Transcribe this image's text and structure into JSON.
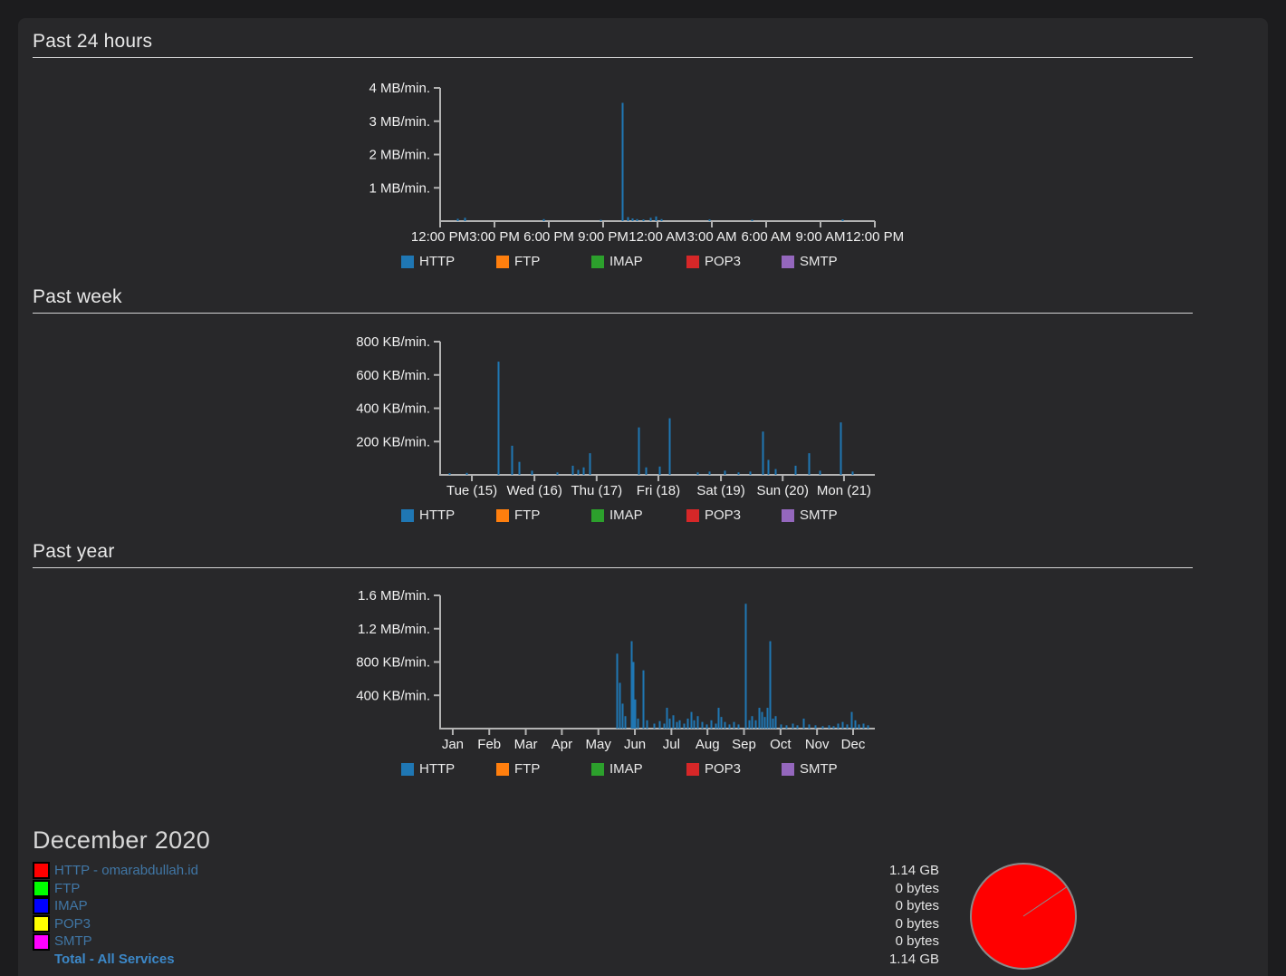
{
  "sections": [
    {
      "title": "Past 24 hours"
    },
    {
      "title": "Past week"
    },
    {
      "title": "Past year"
    }
  ],
  "services": [
    {
      "label": "HTTP",
      "color": "#1f77b4"
    },
    {
      "label": "FTP",
      "color": "#ff7f0e"
    },
    {
      "label": "IMAP",
      "color": "#2ca02c"
    },
    {
      "label": "POP3",
      "color": "#d62728"
    },
    {
      "label": "SMTP",
      "color": "#9467bd"
    }
  ],
  "chart_data": [
    {
      "type": "bar",
      "title": "Past 24 hours",
      "y_unit": "MB/min.",
      "ylim": [
        0,
        4
      ],
      "xlabel": "",
      "ylabel": "",
      "grid": false,
      "legend_position": "bottom",
      "y_ticks": [
        {
          "v": 4,
          "label": "4 MB/min."
        },
        {
          "v": 3,
          "label": "3 MB/min."
        },
        {
          "v": 2,
          "label": "2 MB/min."
        },
        {
          "v": 1,
          "label": "1 MB/min."
        }
      ],
      "x_ticks": [
        {
          "f": 0.0,
          "label": "12:00 PM"
        },
        {
          "f": 0.125,
          "label": "3:00 PM"
        },
        {
          "f": 0.25,
          "label": "6:00 PM"
        },
        {
          "f": 0.375,
          "label": "9:00 PM"
        },
        {
          "f": 0.5,
          "label": "12:00 AM"
        },
        {
          "f": 0.625,
          "label": "3:00 AM"
        },
        {
          "f": 0.75,
          "label": "6:00 AM"
        },
        {
          "f": 0.875,
          "label": "9:00 AM"
        },
        {
          "f": 1.0,
          "label": "12:00 PM"
        }
      ],
      "series": [
        {
          "name": "HTTP",
          "color": "#1f77b4",
          "bars": [
            {
              "f": 0.04,
              "v": 0.07
            },
            {
              "f": 0.056,
              "v": 0.1
            },
            {
              "f": 0.237,
              "v": 0.06
            },
            {
              "f": 0.369,
              "v": 0.04
            },
            {
              "f": 0.419,
              "v": 3.55
            },
            {
              "f": 0.431,
              "v": 0.12
            },
            {
              "f": 0.442,
              "v": 0.08
            },
            {
              "f": 0.452,
              "v": 0.06
            },
            {
              "f": 0.467,
              "v": 0.05
            },
            {
              "f": 0.483,
              "v": 0.1
            },
            {
              "f": 0.496,
              "v": 0.14
            },
            {
              "f": 0.508,
              "v": 0.06
            },
            {
              "f": 0.619,
              "v": 0.05
            },
            {
              "f": 0.717,
              "v": 0.04
            },
            {
              "f": 0.925,
              "v": 0.05
            }
          ]
        },
        {
          "name": "FTP",
          "color": "#ff7f0e",
          "bars": []
        },
        {
          "name": "IMAP",
          "color": "#2ca02c",
          "bars": []
        },
        {
          "name": "POP3",
          "color": "#d62728",
          "bars": []
        },
        {
          "name": "SMTP",
          "color": "#9467bd",
          "bars": []
        }
      ]
    },
    {
      "type": "bar",
      "title": "Past week",
      "y_unit": "KB/min.",
      "ylim": [
        0,
        800
      ],
      "xlabel": "",
      "ylabel": "",
      "grid": false,
      "legend_position": "bottom",
      "y_ticks": [
        {
          "v": 800,
          "label": "800 KB/min."
        },
        {
          "v": 600,
          "label": "600 KB/min."
        },
        {
          "v": 400,
          "label": "400 KB/min."
        },
        {
          "v": 200,
          "label": "200 KB/min."
        }
      ],
      "x_ticks": [
        {
          "f": 0.073,
          "label": "Tue (15)"
        },
        {
          "f": 0.217,
          "label": "Wed (16)"
        },
        {
          "f": 0.36,
          "label": "Thu (17)"
        },
        {
          "f": 0.502,
          "label": "Fri (18)"
        },
        {
          "f": 0.646,
          "label": "Sat (19)"
        },
        {
          "f": 0.788,
          "label": "Sun (20)"
        },
        {
          "f": 0.929,
          "label": "Mon (21)"
        }
      ],
      "series": [
        {
          "name": "HTTP",
          "color": "#1f77b4",
          "bars": [
            {
              "f": 0.02,
              "v": 10
            },
            {
              "f": 0.06,
              "v": 12
            },
            {
              "f": 0.133,
              "v": 680
            },
            {
              "f": 0.165,
              "v": 175
            },
            {
              "f": 0.181,
              "v": 78
            },
            {
              "f": 0.21,
              "v": 25
            },
            {
              "f": 0.269,
              "v": 15
            },
            {
              "f": 0.304,
              "v": 55
            },
            {
              "f": 0.317,
              "v": 30
            },
            {
              "f": 0.329,
              "v": 45
            },
            {
              "f": 0.344,
              "v": 130
            },
            {
              "f": 0.456,
              "v": 285
            },
            {
              "f": 0.473,
              "v": 45
            },
            {
              "f": 0.504,
              "v": 50
            },
            {
              "f": 0.527,
              "v": 340
            },
            {
              "f": 0.592,
              "v": 15
            },
            {
              "f": 0.619,
              "v": 20
            },
            {
              "f": 0.654,
              "v": 25
            },
            {
              "f": 0.685,
              "v": 15
            },
            {
              "f": 0.713,
              "v": 20
            },
            {
              "f": 0.742,
              "v": 260
            },
            {
              "f": 0.754,
              "v": 90
            },
            {
              "f": 0.771,
              "v": 35
            },
            {
              "f": 0.817,
              "v": 55
            },
            {
              "f": 0.848,
              "v": 130
            },
            {
              "f": 0.873,
              "v": 25
            },
            {
              "f": 0.921,
              "v": 315
            },
            {
              "f": 0.948,
              "v": 20
            }
          ]
        },
        {
          "name": "FTP",
          "color": "#ff7f0e",
          "bars": []
        },
        {
          "name": "IMAP",
          "color": "#2ca02c",
          "bars": []
        },
        {
          "name": "POP3",
          "color": "#d62728",
          "bars": []
        },
        {
          "name": "SMTP",
          "color": "#9467bd",
          "bars": []
        }
      ]
    },
    {
      "type": "bar",
      "title": "Past year",
      "y_unit": "MB/min.",
      "ylim": [
        0,
        1.6
      ],
      "xlabel": "",
      "ylabel": "",
      "grid": false,
      "legend_position": "bottom",
      "y_ticks": [
        {
          "v": 1.6,
          "label": "1.6 MB/min."
        },
        {
          "v": 1.2,
          "label": "1.2 MB/min."
        },
        {
          "v": 0.8,
          "label": "800 KB/min."
        },
        {
          "v": 0.4,
          "label": "400 KB/min."
        }
      ],
      "x_ticks": [
        {
          "f": 0.029,
          "label": "Jan"
        },
        {
          "f": 0.113,
          "label": "Feb"
        },
        {
          "f": 0.197,
          "label": "Mar"
        },
        {
          "f": 0.28,
          "label": "Apr"
        },
        {
          "f": 0.364,
          "label": "May"
        },
        {
          "f": 0.448,
          "label": "Jun"
        },
        {
          "f": 0.532,
          "label": "Jul"
        },
        {
          "f": 0.615,
          "label": "Aug"
        },
        {
          "f": 0.699,
          "label": "Sep"
        },
        {
          "f": 0.783,
          "label": "Oct"
        },
        {
          "f": 0.867,
          "label": "Nov"
        },
        {
          "f": 0.95,
          "label": "Dec"
        }
      ],
      "series": [
        {
          "name": "HTTP",
          "color": "#1f77b4",
          "bars": [
            {
              "f": 0.406,
              "v": 0.9
            },
            {
              "f": 0.412,
              "v": 0.55
            },
            {
              "f": 0.419,
              "v": 0.3
            },
            {
              "f": 0.425,
              "v": 0.15
            },
            {
              "f": 0.44,
              "v": 1.05
            },
            {
              "f": 0.444,
              "v": 0.8
            },
            {
              "f": 0.448,
              "v": 0.35
            },
            {
              "f": 0.454,
              "v": 0.12
            },
            {
              "f": 0.467,
              "v": 0.7
            },
            {
              "f": 0.475,
              "v": 0.1
            },
            {
              "f": 0.492,
              "v": 0.06
            },
            {
              "f": 0.504,
              "v": 0.09
            },
            {
              "f": 0.515,
              "v": 0.06
            },
            {
              "f": 0.521,
              "v": 0.25
            },
            {
              "f": 0.527,
              "v": 0.12
            },
            {
              "f": 0.535,
              "v": 0.16
            },
            {
              "f": 0.544,
              "v": 0.08
            },
            {
              "f": 0.55,
              "v": 0.1
            },
            {
              "f": 0.56,
              "v": 0.06
            },
            {
              "f": 0.569,
              "v": 0.12
            },
            {
              "f": 0.577,
              "v": 0.2
            },
            {
              "f": 0.583,
              "v": 0.1
            },
            {
              "f": 0.592,
              "v": 0.15
            },
            {
              "f": 0.602,
              "v": 0.08
            },
            {
              "f": 0.612,
              "v": 0.05
            },
            {
              "f": 0.623,
              "v": 0.1
            },
            {
              "f": 0.633,
              "v": 0.06
            },
            {
              "f": 0.64,
              "v": 0.25
            },
            {
              "f": 0.646,
              "v": 0.14
            },
            {
              "f": 0.654,
              "v": 0.08
            },
            {
              "f": 0.665,
              "v": 0.05
            },
            {
              "f": 0.675,
              "v": 0.08
            },
            {
              "f": 0.685,
              "v": 0.05
            },
            {
              "f": 0.702,
              "v": 1.5
            },
            {
              "f": 0.71,
              "v": 0.1
            },
            {
              "f": 0.717,
              "v": 0.15
            },
            {
              "f": 0.725,
              "v": 0.1
            },
            {
              "f": 0.733,
              "v": 0.25
            },
            {
              "f": 0.74,
              "v": 0.2
            },
            {
              "f": 0.746,
              "v": 0.14
            },
            {
              "f": 0.752,
              "v": 0.25
            },
            {
              "f": 0.758,
              "v": 1.05
            },
            {
              "f": 0.765,
              "v": 0.12
            },
            {
              "f": 0.771,
              "v": 0.15
            },
            {
              "f": 0.783,
              "v": 0.05
            },
            {
              "f": 0.796,
              "v": 0.04
            },
            {
              "f": 0.81,
              "v": 0.06
            },
            {
              "f": 0.821,
              "v": 0.04
            },
            {
              "f": 0.835,
              "v": 0.12
            },
            {
              "f": 0.848,
              "v": 0.05
            },
            {
              "f": 0.862,
              "v": 0.04
            },
            {
              "f": 0.879,
              "v": 0.03
            },
            {
              "f": 0.894,
              "v": 0.04
            },
            {
              "f": 0.904,
              "v": 0.03
            },
            {
              "f": 0.915,
              "v": 0.06
            },
            {
              "f": 0.925,
              "v": 0.08
            },
            {
              "f": 0.935,
              "v": 0.05
            },
            {
              "f": 0.946,
              "v": 0.2
            },
            {
              "f": 0.954,
              "v": 0.1
            },
            {
              "f": 0.962,
              "v": 0.05
            },
            {
              "f": 0.973,
              "v": 0.06
            },
            {
              "f": 0.983,
              "v": 0.04
            }
          ]
        },
        {
          "name": "FTP",
          "color": "#ff7f0e",
          "bars": []
        },
        {
          "name": "IMAP",
          "color": "#2ca02c",
          "bars": []
        },
        {
          "name": "POP3",
          "color": "#d62728",
          "bars": []
        },
        {
          "name": "SMTP",
          "color": "#9467bd",
          "bars": []
        }
      ]
    }
  ],
  "month": {
    "title": "December 2020",
    "rows": [
      {
        "service": "HTTP - omarabdullah.id",
        "swatch": "#ff0000",
        "value": "1.14 GB",
        "bold": false
      },
      {
        "service": "FTP",
        "swatch": "#00ff00",
        "value": "0 bytes",
        "bold": false
      },
      {
        "service": "IMAP",
        "swatch": "#0000ff",
        "value": "0 bytes",
        "bold": false
      },
      {
        "service": "POP3",
        "swatch": "#ffff00",
        "value": "0 bytes",
        "bold": false
      },
      {
        "service": "SMTP",
        "swatch": "#ff00ff",
        "value": "0 bytes",
        "bold": false
      },
      {
        "service": "Total - All Services",
        "swatch": null,
        "value": "1.14 GB",
        "bold": true
      }
    ],
    "pie": {
      "type": "pie",
      "slices": [
        {
          "label": "HTTP - omarabdullah.id",
          "value_text": "1.14 GB",
          "fraction": 1.0,
          "color": "#ff0000"
        }
      ],
      "boundary_angle_deg": 34,
      "stroke": "#8a8a8a"
    }
  },
  "style": {
    "panel_bg": "#28282a",
    "page_bg": "#1c1c1e",
    "axis_color": "#b3b3b3",
    "heading_color": "#e8e8e8",
    "link_color": "#4076a5",
    "total_link_color": "#3c88c8"
  }
}
